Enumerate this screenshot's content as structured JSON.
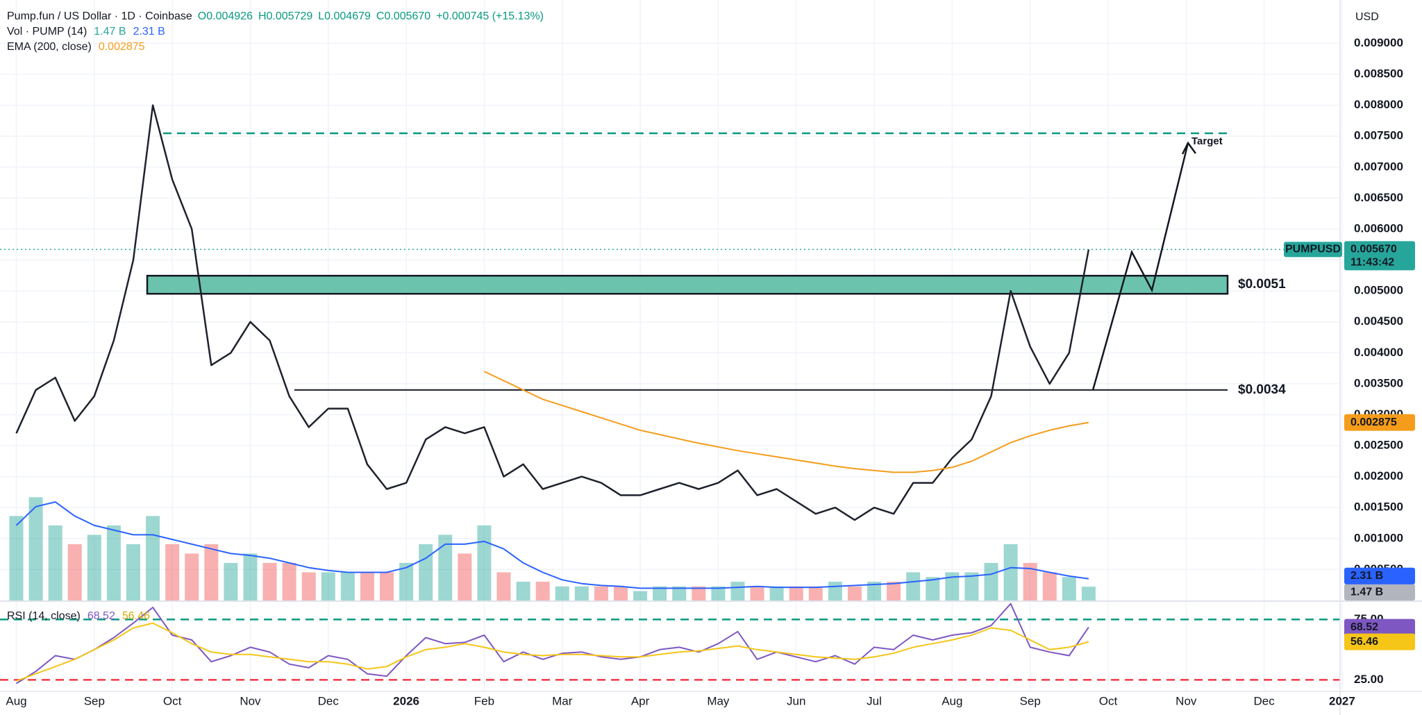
{
  "header": {
    "title": "Pump.fun / US Dollar · 1D · Coinbase",
    "ohlc": [
      "O0.004926",
      "H0.005729",
      "L0.004679",
      "C0.005670"
    ],
    "change": "+0.000745 (+15.13%)",
    "currency": "USD"
  },
  "chart_data": [
    {
      "type": "line",
      "categories": [
        "Aug",
        null,
        null,
        null,
        "Sep",
        null,
        null,
        null,
        "Oct",
        null,
        null,
        null,
        "Nov",
        null,
        null,
        null,
        "Dec",
        null,
        null,
        null,
        "2026",
        null,
        null,
        null,
        "Feb",
        null,
        null,
        null,
        "Mar",
        null,
        null,
        null,
        "Apr",
        null,
        null,
        null,
        "May",
        null,
        null,
        null,
        "Jun",
        null,
        null,
        null,
        "Jul",
        null,
        null,
        null,
        "Aug",
        null,
        null,
        null,
        "Sep",
        null,
        null,
        null,
        "Oct",
        null,
        null,
        null,
        "Nov",
        null,
        null,
        null,
        "Dec",
        null,
        null,
        null,
        "2027",
        null,
        null,
        null
      ],
      "series": [
        {
          "name": "PUMPUSD",
          "color": "#1e222d",
          "legend_value": "0.005670",
          "values": [
            0.0027,
            0.0034,
            0.0036,
            0.0029,
            0.0033,
            0.0042,
            0.0055,
            0.008,
            0.0068,
            0.006,
            0.0038,
            0.004,
            0.0045,
            0.0042,
            0.0033,
            0.0028,
            0.0031,
            0.0031,
            0.0022,
            0.0018,
            0.0019,
            0.0026,
            0.0028,
            0.0027,
            0.0028,
            0.002,
            0.0022,
            0.0018,
            0.0019,
            0.002,
            0.0019,
            0.0017,
            0.0017,
            0.0018,
            0.0019,
            0.0018,
            0.0019,
            0.0021,
            0.0017,
            0.0018,
            0.0016,
            0.0014,
            0.0015,
            0.0013,
            0.0015,
            0.0014,
            0.0019,
            0.0019,
            0.0023,
            0.0026,
            0.0033,
            0.005,
            0.0041,
            0.0035,
            0.004,
            0.00567,
            null,
            null,
            null,
            null,
            null,
            null,
            null,
            null,
            null,
            null,
            null,
            null,
            null,
            null,
            null,
            null
          ]
        },
        {
          "name": "EMA (200, close)",
          "color": "#f59c1a",
          "legend_value": "0.002875",
          "values": [
            null,
            null,
            null,
            null,
            null,
            null,
            null,
            null,
            null,
            null,
            null,
            null,
            null,
            null,
            null,
            null,
            null,
            null,
            null,
            null,
            null,
            null,
            null,
            null,
            0.0037,
            0.00355,
            0.0034,
            0.00325,
            0.00315,
            0.00305,
            0.00295,
            0.00285,
            0.00275,
            0.00268,
            0.00261,
            0.00254,
            0.00248,
            0.00242,
            0.00237,
            0.00232,
            0.00227,
            0.00222,
            0.00217,
            0.00213,
            0.0021,
            0.00207,
            0.00207,
            0.0021,
            0.00215,
            0.00225,
            0.0024,
            0.00255,
            0.00266,
            0.00275,
            0.00282,
            0.002875,
            null,
            null,
            null,
            null,
            null,
            null,
            null,
            null,
            null,
            null,
            null,
            null,
            null,
            null,
            null,
            null
          ]
        }
      ],
      "ylim": [
        0,
        0.0097
      ],
      "yticks": [
        {
          "value": 0.0005,
          "label": "0.000500"
        },
        {
          "value": 0.001,
          "label": "0.001000"
        },
        {
          "value": 0.0015,
          "label": "0.001500"
        },
        {
          "value": 0.002,
          "label": "0.002000"
        },
        {
          "value": 0.0025,
          "label": "0.002500"
        },
        {
          "value": 0.003,
          "label": "0.003000"
        },
        {
          "value": 0.0035,
          "label": "0.003500"
        },
        {
          "value": 0.004,
          "label": "0.004000"
        },
        {
          "value": 0.0045,
          "label": "0.004500"
        },
        {
          "value": 0.005,
          "label": "0.005000"
        },
        {
          "value": 0.0055,
          "label": "0.005500"
        },
        {
          "value": 0.006,
          "label": "0.006000"
        },
        {
          "value": 0.0065,
          "label": "0.006500"
        },
        {
          "value": 0.007,
          "label": "0.007000"
        },
        {
          "value": 0.0075,
          "label": "0.007500"
        },
        {
          "value": 0.008,
          "label": "0.008000"
        },
        {
          "value": 0.0085,
          "label": "0.008500"
        },
        {
          "value": 0.009,
          "label": "0.009000"
        }
      ],
      "grid": true,
      "levels": [
        {
          "value": 0.0051,
          "label": "$0.0051",
          "kind": "zone",
          "color": "#6cc3ad"
        },
        {
          "value": 0.0034,
          "label": "$0.0034",
          "kind": "line",
          "color": "#131722"
        }
      ],
      "target_label": "Target",
      "price_tag": {
        "countdown": "11:43:42",
        "color": "#26a69a"
      }
    },
    {
      "type": "bar",
      "title": "Vol · PUMP (14)",
      "legend_values": [
        "1.47 B",
        "2.31 B"
      ],
      "up_color": "#26a69a",
      "down_color": "#ef5350",
      "values": [
        9,
        11,
        8,
        6,
        7,
        8,
        6,
        9,
        6,
        5,
        6,
        4,
        5,
        4,
        4,
        3,
        3,
        3,
        3,
        3,
        4,
        6,
        7,
        5,
        8,
        3,
        2,
        2,
        1.5,
        1.5,
        1.5,
        1.5,
        1,
        1.5,
        1.5,
        1.5,
        1.5,
        2,
        1.5,
        1.5,
        1.5,
        1.5,
        2,
        1.5,
        2,
        2,
        3,
        2.5,
        3,
        3,
        4,
        6,
        4,
        3,
        2.5,
        1.47,
        null,
        null,
        null,
        null,
        null,
        null,
        null,
        null,
        null,
        null,
        null,
        null,
        null,
        null,
        null,
        null
      ],
      "ma": {
        "color": "#2962ff",
        "values": [
          8,
          10,
          10.5,
          9,
          8,
          7.5,
          7,
          7,
          6.5,
          6,
          5.5,
          5,
          4.8,
          4.5,
          4,
          3.5,
          3.2,
          3,
          3,
          3,
          3.5,
          4.5,
          6,
          6,
          6.3,
          5.5,
          4,
          3,
          2.2,
          1.8,
          1.6,
          1.5,
          1.3,
          1.3,
          1.3,
          1.3,
          1.3,
          1.4,
          1.5,
          1.4,
          1.4,
          1.4,
          1.5,
          1.6,
          1.7,
          1.8,
          2,
          2.2,
          2.5,
          2.6,
          2.8,
          3.5,
          3.4,
          3,
          2.6,
          2.31,
          null,
          null,
          null,
          null,
          null,
          null,
          null,
          null,
          null,
          null,
          null,
          null,
          null,
          null,
          null,
          null
        ]
      },
      "ylim": [
        0,
        64
      ]
    },
    {
      "type": "line",
      "title": "RSI (14, close)",
      "legend_values": [
        "68.52",
        "56.46"
      ],
      "series": [
        {
          "color": "#7e57c2",
          "values": [
            22,
            32,
            45,
            42,
            50,
            60,
            72,
            85,
            62,
            58,
            40,
            45,
            52,
            48,
            38,
            35,
            45,
            42,
            30,
            28,
            45,
            60,
            55,
            56,
            62,
            40,
            48,
            42,
            47,
            48,
            44,
            42,
            44,
            50,
            52,
            48,
            55,
            65,
            42,
            48,
            44,
            40,
            45,
            38,
            52,
            50,
            62,
            58,
            62,
            64,
            70,
            88,
            52,
            48,
            45,
            68.52,
            null,
            null,
            null,
            null,
            null,
            null,
            null,
            null,
            null,
            null,
            null,
            null,
            null,
            null,
            null,
            null
          ]
        },
        {
          "color": "#f5c518",
          "values": [
            24,
            30,
            36,
            42,
            50,
            58,
            68,
            72,
            64,
            55,
            48,
            46,
            46,
            44,
            42,
            40,
            40,
            38,
            34,
            36,
            44,
            50,
            52,
            55,
            52,
            48,
            46,
            45,
            46,
            46,
            45,
            44,
            44,
            46,
            48,
            49,
            51,
            53,
            50,
            48,
            46,
            44,
            43,
            42,
            44,
            47,
            52,
            55,
            58,
            62,
            68,
            66,
            58,
            50,
            52,
            56.46,
            null,
            null,
            null,
            null,
            null,
            null,
            null,
            null,
            null,
            null,
            null,
            null,
            null,
            null,
            null,
            null
          ]
        }
      ],
      "ylim": [
        16,
        89
      ],
      "yticks": [
        {
          "value": 25,
          "label": "25.00"
        },
        {
          "value": 75,
          "label": "75.00"
        }
      ],
      "level_colors": [
        "#f23645",
        "#089981"
      ]
    }
  ]
}
